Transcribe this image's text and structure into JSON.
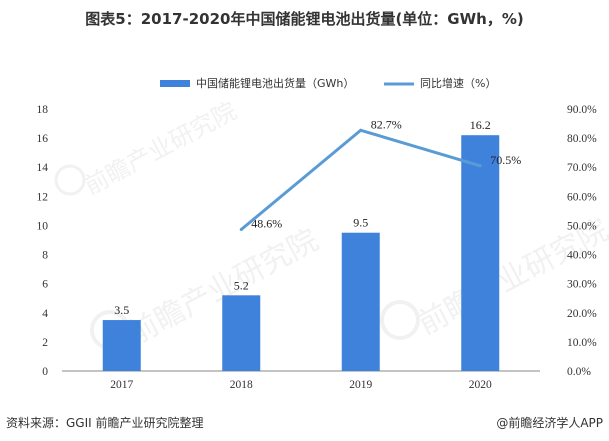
{
  "title": "图表5：2017-2020年中国储能锂电池出货量(单位：GWh，%)",
  "source": "资料来源：GGII 前瞻产业研究院整理",
  "credit": "@前瞻经济学人APP",
  "chart_data": {
    "type": "bar",
    "categories": [
      "2017",
      "2018",
      "2019",
      "2020"
    ],
    "series": [
      {
        "name": "中国储能锂电池出货量（GWh）",
        "kind": "bar",
        "axis": "left",
        "values": [
          3.5,
          5.2,
          9.5,
          16.2
        ],
        "labels": [
          "3.5",
          "5.2",
          "9.5",
          "16.2"
        ],
        "color": "#3f82dc"
      },
      {
        "name": "同比增速（%）",
        "kind": "line",
        "axis": "right",
        "values": [
          null,
          48.6,
          82.7,
          70.5
        ],
        "labels": [
          "",
          "48.6%",
          "82.7%",
          "70.5%"
        ],
        "color": "#5b9bd5"
      }
    ],
    "left_axis": {
      "min": 0,
      "max": 18,
      "step": 2,
      "ticks": [
        "0",
        "2",
        "4",
        "6",
        "8",
        "10",
        "12",
        "14",
        "16",
        "18"
      ]
    },
    "right_axis": {
      "min": 0,
      "max": 90,
      "step": 10,
      "ticks": [
        "0.0%",
        "10.0%",
        "20.0%",
        "30.0%",
        "40.0%",
        "50.0%",
        "60.0%",
        "70.0%",
        "80.0%",
        "90.0%"
      ]
    },
    "legend_position": "top-center",
    "grid": false
  }
}
